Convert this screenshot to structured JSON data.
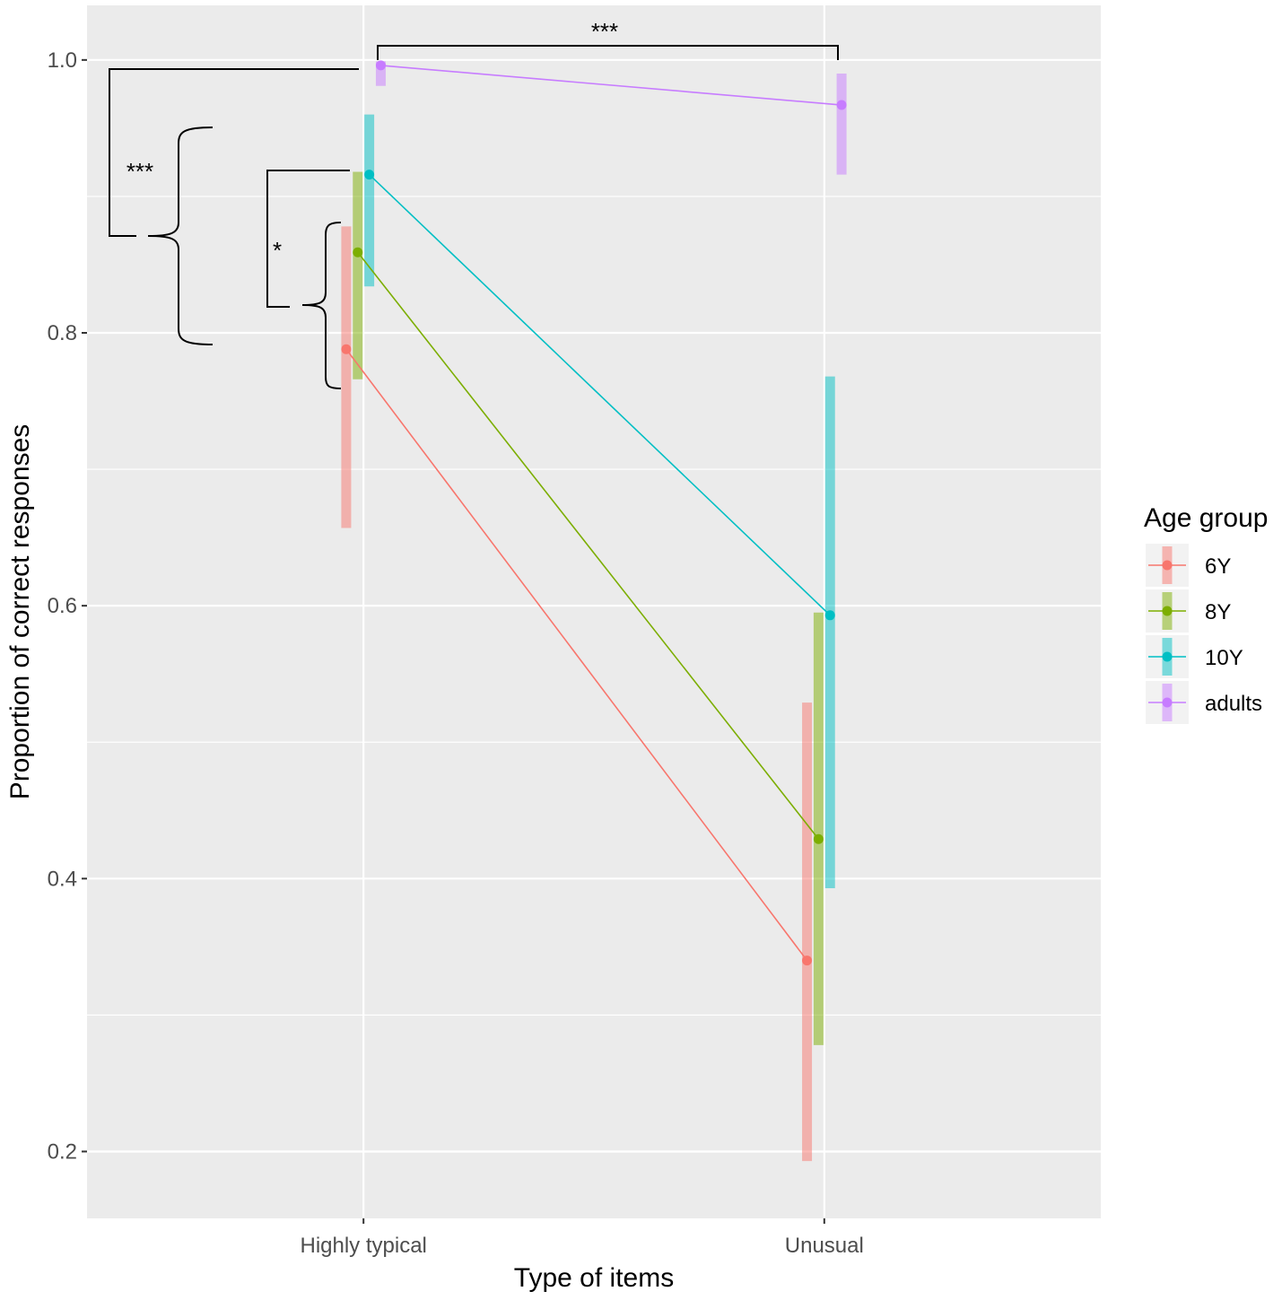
{
  "chart_data": {
    "type": "line",
    "xlabel": "Type of items",
    "ylabel": "Proportion of correct responses",
    "categories": [
      "Highly typical",
      "Unusual"
    ],
    "ylim": [
      0.151,
      1.04
    ],
    "yticks": [
      0.2,
      0.4,
      0.6,
      0.8,
      1.0
    ],
    "ytick_labels": [
      "0.2",
      "0.4",
      "0.6",
      "0.8",
      "1.0"
    ],
    "grid": true,
    "legend": {
      "title": "Age group",
      "position": "right"
    },
    "series": [
      {
        "name": "6Y",
        "color": "#F8766D",
        "offset": -0.0375,
        "values": [
          0.788,
          0.34
        ],
        "lower": [
          0.657,
          0.193
        ],
        "upper": [
          0.878,
          0.529
        ]
      },
      {
        "name": "8Y",
        "color": "#7CAE00",
        "offset": -0.0125,
        "values": [
          0.859,
          0.429
        ],
        "lower": [
          0.766,
          0.278
        ],
        "upper": [
          0.918,
          0.595
        ]
      },
      {
        "name": "10Y",
        "color": "#00BFC4",
        "offset": 0.0125,
        "values": [
          0.916,
          0.593
        ],
        "lower": [
          0.834,
          0.393
        ],
        "upper": [
          0.96,
          0.768
        ]
      },
      {
        "name": "adults",
        "color": "#C77CFF",
        "offset": 0.0375,
        "values": [
          0.996,
          0.967
        ],
        "lower": [
          0.981,
          0.916
        ],
        "upper": [
          0.999,
          0.99
        ]
      }
    ],
    "annotations": [
      "***",
      "***",
      "*"
    ]
  }
}
